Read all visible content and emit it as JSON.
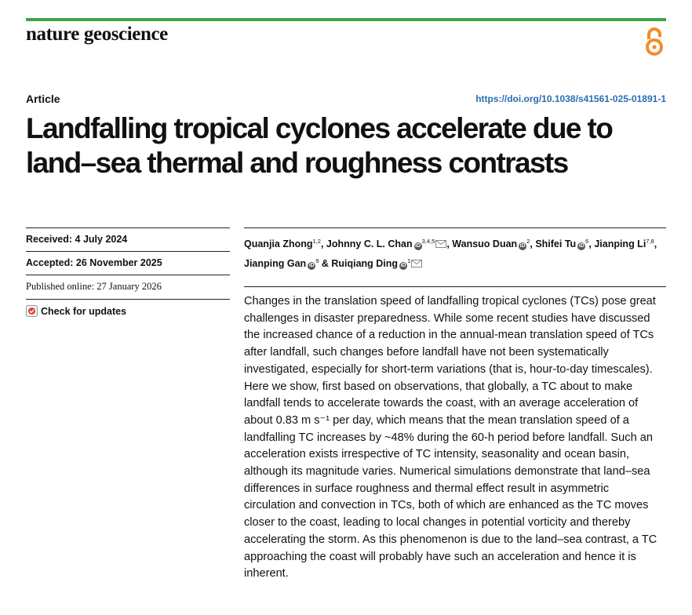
{
  "header": {
    "journal": "nature geoscience",
    "open_access_icon": "open-access-icon",
    "accent_color": "#3ea34a",
    "oa_color": "#f28c28"
  },
  "article": {
    "type": "Article",
    "doi": "https://doi.org/10.1038/s41561-025-01891-1",
    "title": "Landfalling tropical cyclones accelerate due to land–sea thermal and roughness contrasts"
  },
  "dates": {
    "received": "Received: 4 July 2024",
    "accepted": "Accepted: 26 November 2025",
    "published": "Published online: 27 January 2026",
    "check_updates": "Check for updates"
  },
  "authors": [
    {
      "name": "Quanjia Zhong",
      "sup": "1,2",
      "orcid": false,
      "email": false,
      "sep": ","
    },
    {
      "name": "Johnny C. L. Chan",
      "sup": "3,4,5",
      "orcid": true,
      "email": true,
      "sep": ","
    },
    {
      "name": "Wansuo Duan",
      "sup": "2",
      "orcid": true,
      "email": false,
      "sep": ","
    },
    {
      "name": "Shifei Tu",
      "sup": "6",
      "orcid": true,
      "email": false,
      "sep": ","
    },
    {
      "name": "Jianping Li",
      "sup": "7,8",
      "orcid": false,
      "email": false,
      "sep": ","
    },
    {
      "name": "Jianping Gan",
      "sup": "9",
      "orcid": true,
      "email": false,
      "sep": " &"
    },
    {
      "name": "Ruiqiang Ding",
      "sup": "1",
      "orcid": true,
      "email": true,
      "sep": ""
    }
  ],
  "abstract": "Changes in the translation speed of landfalling tropical cyclones (TCs) pose great challenges in disaster preparedness. While some recent studies have discussed the increased chance of a reduction in the annual-mean translation speed of TCs after landfall, such changes before landfall have not been systematically investigated, especially for short-term variations (that is, hour-to-day timescales). Here we show, first based on observations, that globally, a TC about to make landfall tends to accelerate towards the coast, with an average acceleration of about 0.83 m s⁻¹ per day, which means that the mean translation speed of a landfalling TC increases by ~48% during the 60-h period before landfall. Such an acceleration exists irrespective of TC intensity, seasonality and ocean basin, although its magnitude varies. Numerical simulations demonstrate that land–sea differences in surface roughness and thermal effect result in asymmetric circulation and convection in TCs, both of which are enhanced as the TC moves closer to the coast, leading to local changes in potential vorticity and thereby accelerating the storm. As this phenomenon is due to the land–sea contrast, a TC approaching the coast will probably have such an acceleration and hence it is inherent."
}
